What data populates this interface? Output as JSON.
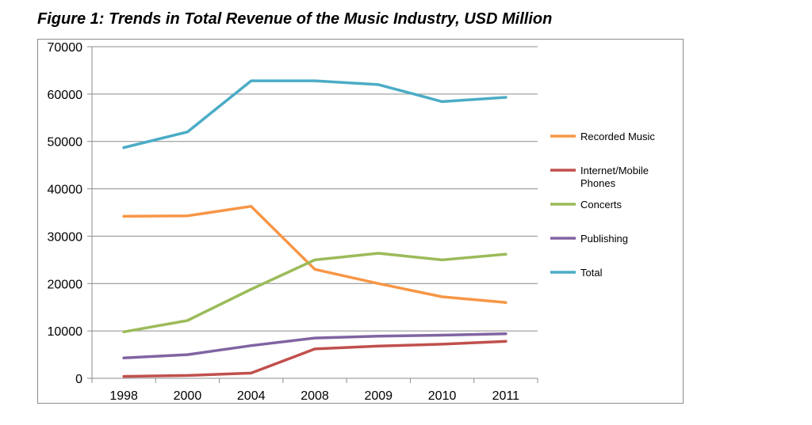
{
  "figure": {
    "title": "Figure 1: Trends in Total Revenue of the Music Industry, USD Million"
  },
  "chart_data": {
    "type": "line",
    "title": "",
    "xlabel": "",
    "ylabel": "",
    "categories": [
      "1998",
      "2000",
      "2004",
      "2008",
      "2009",
      "2010",
      "2011"
    ],
    "ylim": [
      0,
      70000
    ],
    "yticks": [
      0,
      10000,
      20000,
      30000,
      40000,
      50000,
      60000,
      70000
    ],
    "grid": true,
    "legend_position": "right",
    "series": [
      {
        "name": "Recorded Music",
        "color": "#f79646",
        "values": [
          34200,
          34300,
          36300,
          23000,
          20000,
          17200,
          16000
        ]
      },
      {
        "name": "Internet/Mobile Phones",
        "color": "#c0504d",
        "values": [
          400,
          600,
          1100,
          6200,
          6800,
          7200,
          7800
        ]
      },
      {
        "name": "Concerts",
        "color": "#9bbb59",
        "values": [
          9800,
          12200,
          18800,
          25000,
          26400,
          25000,
          26200
        ]
      },
      {
        "name": "Publishing",
        "color": "#8064a2",
        "values": [
          4300,
          5000,
          6900,
          8500,
          8900,
          9100,
          9400
        ]
      },
      {
        "name": "Total",
        "color": "#4bacc6",
        "values": [
          48700,
          52000,
          62800,
          62800,
          62000,
          58400,
          59300
        ]
      }
    ]
  }
}
